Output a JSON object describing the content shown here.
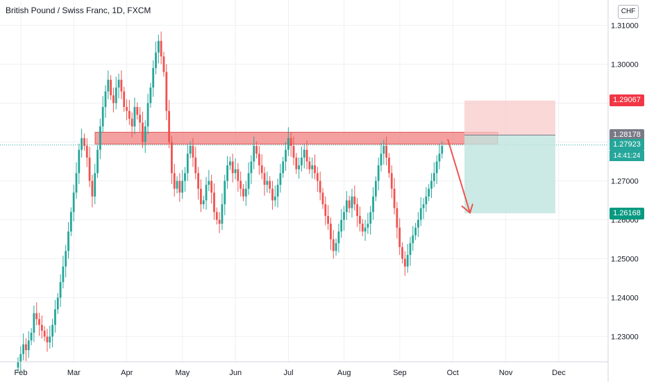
{
  "header": {
    "title": "British Pound / Swiss Franc, 1D, FXCM",
    "currency": "CHF"
  },
  "price_tags": {
    "stop": {
      "value": "1.29067",
      "color": "#f23645"
    },
    "entry": {
      "value": "1.28178",
      "color": "#787b86"
    },
    "last": {
      "value": "1.27923",
      "countdown": "14:41:24",
      "color": "#26a69a"
    },
    "target": {
      "value": "1.26168",
      "color": "#089981"
    }
  },
  "chart_data": {
    "type": "candlestick",
    "title": "British Pound / Swiss Franc, 1D, FXCM",
    "x_labels": [
      "Feb",
      "Mar",
      "Apr",
      "May",
      "Jun",
      "Jul",
      "Aug",
      "Sep",
      "Oct",
      "Nov",
      "Dec"
    ],
    "y_ticks": [
      "1.23000",
      "1.24000",
      "1.25000",
      "1.26000",
      "1.27000",
      "1.28000",
      "1.29000",
      "1.30000",
      "1.31000"
    ],
    "ylim": [
      1.2235,
      1.3165
    ],
    "grid": true,
    "up_color": "#26a69a",
    "down_color": "#ef5350",
    "series_close": [
      1.2235,
      1.2255,
      1.228,
      1.2265,
      1.229,
      1.231,
      1.236,
      1.2345,
      1.233,
      1.2315,
      1.23,
      1.2285,
      1.23,
      1.233,
      1.237,
      1.24,
      1.244,
      1.248,
      1.252,
      1.257,
      1.262,
      1.267,
      1.272,
      1.278,
      1.281,
      1.279,
      1.276,
      1.27,
      1.266,
      1.272,
      1.278,
      1.284,
      1.289,
      1.293,
      1.296,
      1.292,
      1.29,
      1.294,
      1.296,
      1.293,
      1.289,
      1.288,
      1.286,
      1.284,
      1.289,
      1.287,
      1.285,
      1.28,
      1.284,
      1.29,
      1.294,
      1.299,
      1.303,
      1.306,
      1.302,
      1.298,
      1.288,
      1.28,
      1.272,
      1.268,
      1.27,
      1.267,
      1.27,
      1.272,
      1.277,
      1.279,
      1.276,
      1.272,
      1.268,
      1.264,
      1.265,
      1.269,
      1.27,
      1.267,
      1.262,
      1.26,
      1.259,
      1.264,
      1.27,
      1.274,
      1.275,
      1.272,
      1.273,
      1.27,
      1.268,
      1.266,
      1.268,
      1.272,
      1.275,
      1.279,
      1.277,
      1.274,
      1.272,
      1.269,
      1.27,
      1.268,
      1.265,
      1.266,
      1.269,
      1.272,
      1.275,
      1.278,
      1.281,
      1.279,
      1.276,
      1.273,
      1.274,
      1.276,
      1.278,
      1.275,
      1.273,
      1.274,
      1.272,
      1.27,
      1.267,
      1.264,
      1.261,
      1.259,
      1.255,
      1.252,
      1.254,
      1.257,
      1.26,
      1.262,
      1.265,
      1.263,
      1.266,
      1.264,
      1.261,
      1.259,
      1.257,
      1.258,
      1.259,
      1.262,
      1.266,
      1.27,
      1.274,
      1.277,
      1.279,
      1.276,
      1.272,
      1.268,
      1.263,
      1.258,
      1.253,
      1.25,
      1.248,
      1.251,
      1.254,
      1.256,
      1.258,
      1.26,
      1.263,
      1.264,
      1.266,
      1.268,
      1.27,
      1.272,
      1.275,
      1.277,
      1.279
    ]
  },
  "drawings": {
    "resistance_zone": {
      "low": 1.2802,
      "high": 1.2818,
      "color": "#f08080"
    },
    "risk_box": {
      "top": 1.29067,
      "bottom": 1.28178,
      "color": "#f8c8c8"
    },
    "reward_box": {
      "top": 1.28178,
      "bottom": 1.26168,
      "color": "#bfe5df"
    }
  }
}
